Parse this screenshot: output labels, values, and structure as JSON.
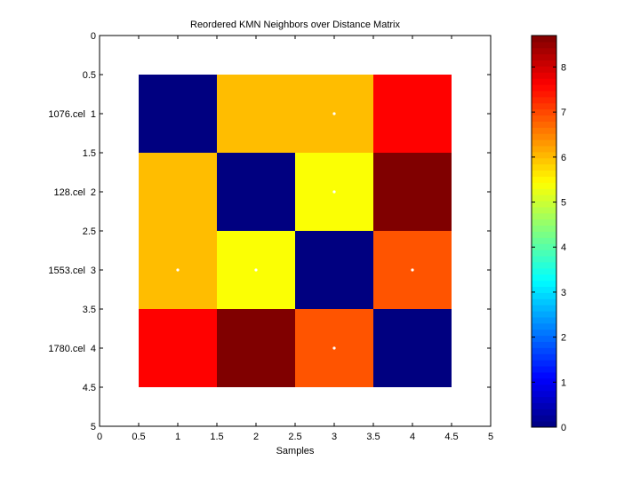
{
  "chart_data": {
    "type": "heatmap",
    "title": "Reordered KMN Neighbors over Distance Matrix",
    "xlabel": "Samples",
    "ylabel": "",
    "xlim": [
      0,
      5
    ],
    "ylim": [
      0,
      5
    ],
    "y_direction": "reversed",
    "x_ticks": [
      "0",
      "0.5",
      "1",
      "1.5",
      "2",
      "2.5",
      "3",
      "3.5",
      "4",
      "4.5",
      "5"
    ],
    "y_ticks": [
      "0",
      "0.5",
      "1",
      "1.5",
      "2",
      "2.5",
      "3",
      "3.5",
      "4",
      "4.5",
      "5"
    ],
    "row_labels": [
      "1076.cel",
      "128.cel",
      "1553.cel",
      "1780.cel"
    ],
    "matrix": [
      [
        0,
        6.0,
        6.0,
        7.6
      ],
      [
        6.0,
        0,
        5.4,
        8.7
      ],
      [
        6.0,
        5.4,
        0,
        6.9
      ],
      [
        7.6,
        8.7,
        6.9,
        0
      ]
    ],
    "neighbor_markers": [
      [
        3,
        1
      ],
      [
        3,
        2
      ],
      [
        1,
        3
      ],
      [
        2,
        3
      ],
      [
        4,
        3
      ],
      [
        3,
        4
      ]
    ],
    "colormap": "jet",
    "colorbar": {
      "range": [
        0,
        8.7
      ],
      "ticks": [
        "0",
        "1",
        "2",
        "3",
        "4",
        "5",
        "6",
        "7",
        "8"
      ]
    },
    "marker_color": "#ffffff"
  }
}
